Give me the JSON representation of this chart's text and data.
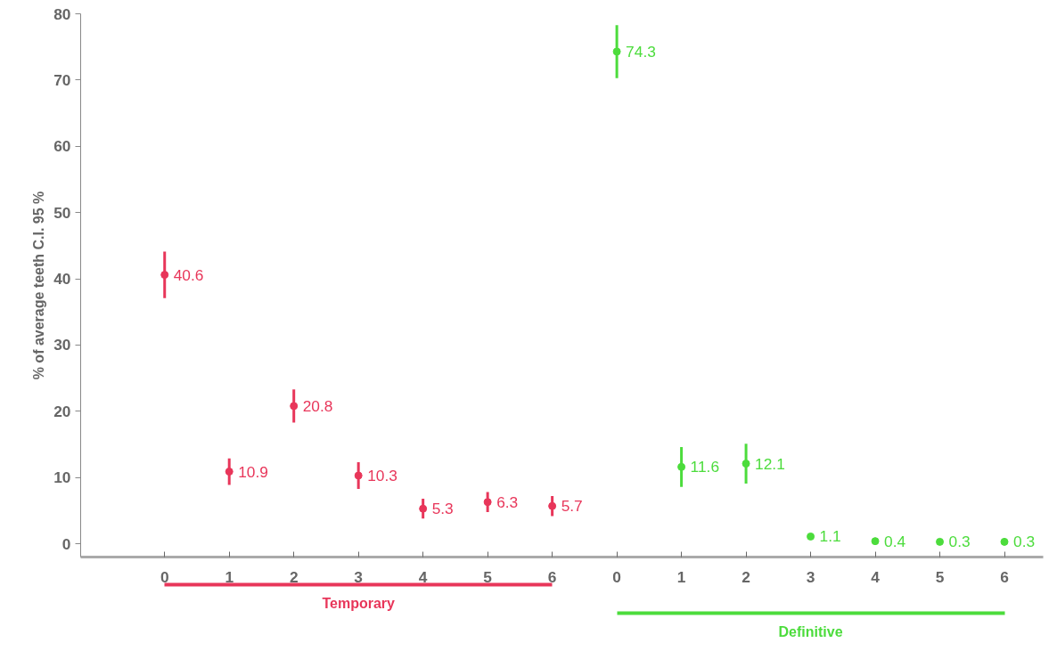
{
  "chart_data": {
    "type": "scatter",
    "ylabel": "% of average teeth C.I. 95 %",
    "categories": [
      "0",
      "1",
      "2",
      "3",
      "4",
      "5",
      "6",
      "0",
      "1",
      "2",
      "3",
      "4",
      "5",
      "6"
    ],
    "series": [
      {
        "name": "Temporary",
        "color": "#e8365a",
        "values": [
          40.6,
          10.9,
          20.8,
          10.3,
          5.3,
          6.3,
          5.7,
          null,
          null,
          null,
          null,
          null,
          null,
          null
        ],
        "errors": [
          3.5,
          2,
          2.5,
          2,
          1.5,
          1.5,
          1.5,
          null,
          null,
          null,
          null,
          null,
          null,
          null
        ]
      },
      {
        "name": "Definitive",
        "color": "#4cdc3c",
        "values": [
          null,
          null,
          null,
          null,
          null,
          null,
          null,
          74.3,
          11.6,
          12.1,
          1.1,
          0.4,
          0.3,
          0.3
        ],
        "errors": [
          null,
          null,
          null,
          null,
          null,
          null,
          null,
          4,
          3,
          3,
          null,
          null,
          null,
          null
        ]
      }
    ],
    "ylim": [
      -2,
      80
    ],
    "yticks": [
      0,
      10,
      20,
      30,
      40,
      50,
      60,
      70,
      80
    ],
    "grid": false,
    "legend": false,
    "marker": "circle",
    "data_labels": true
  }
}
